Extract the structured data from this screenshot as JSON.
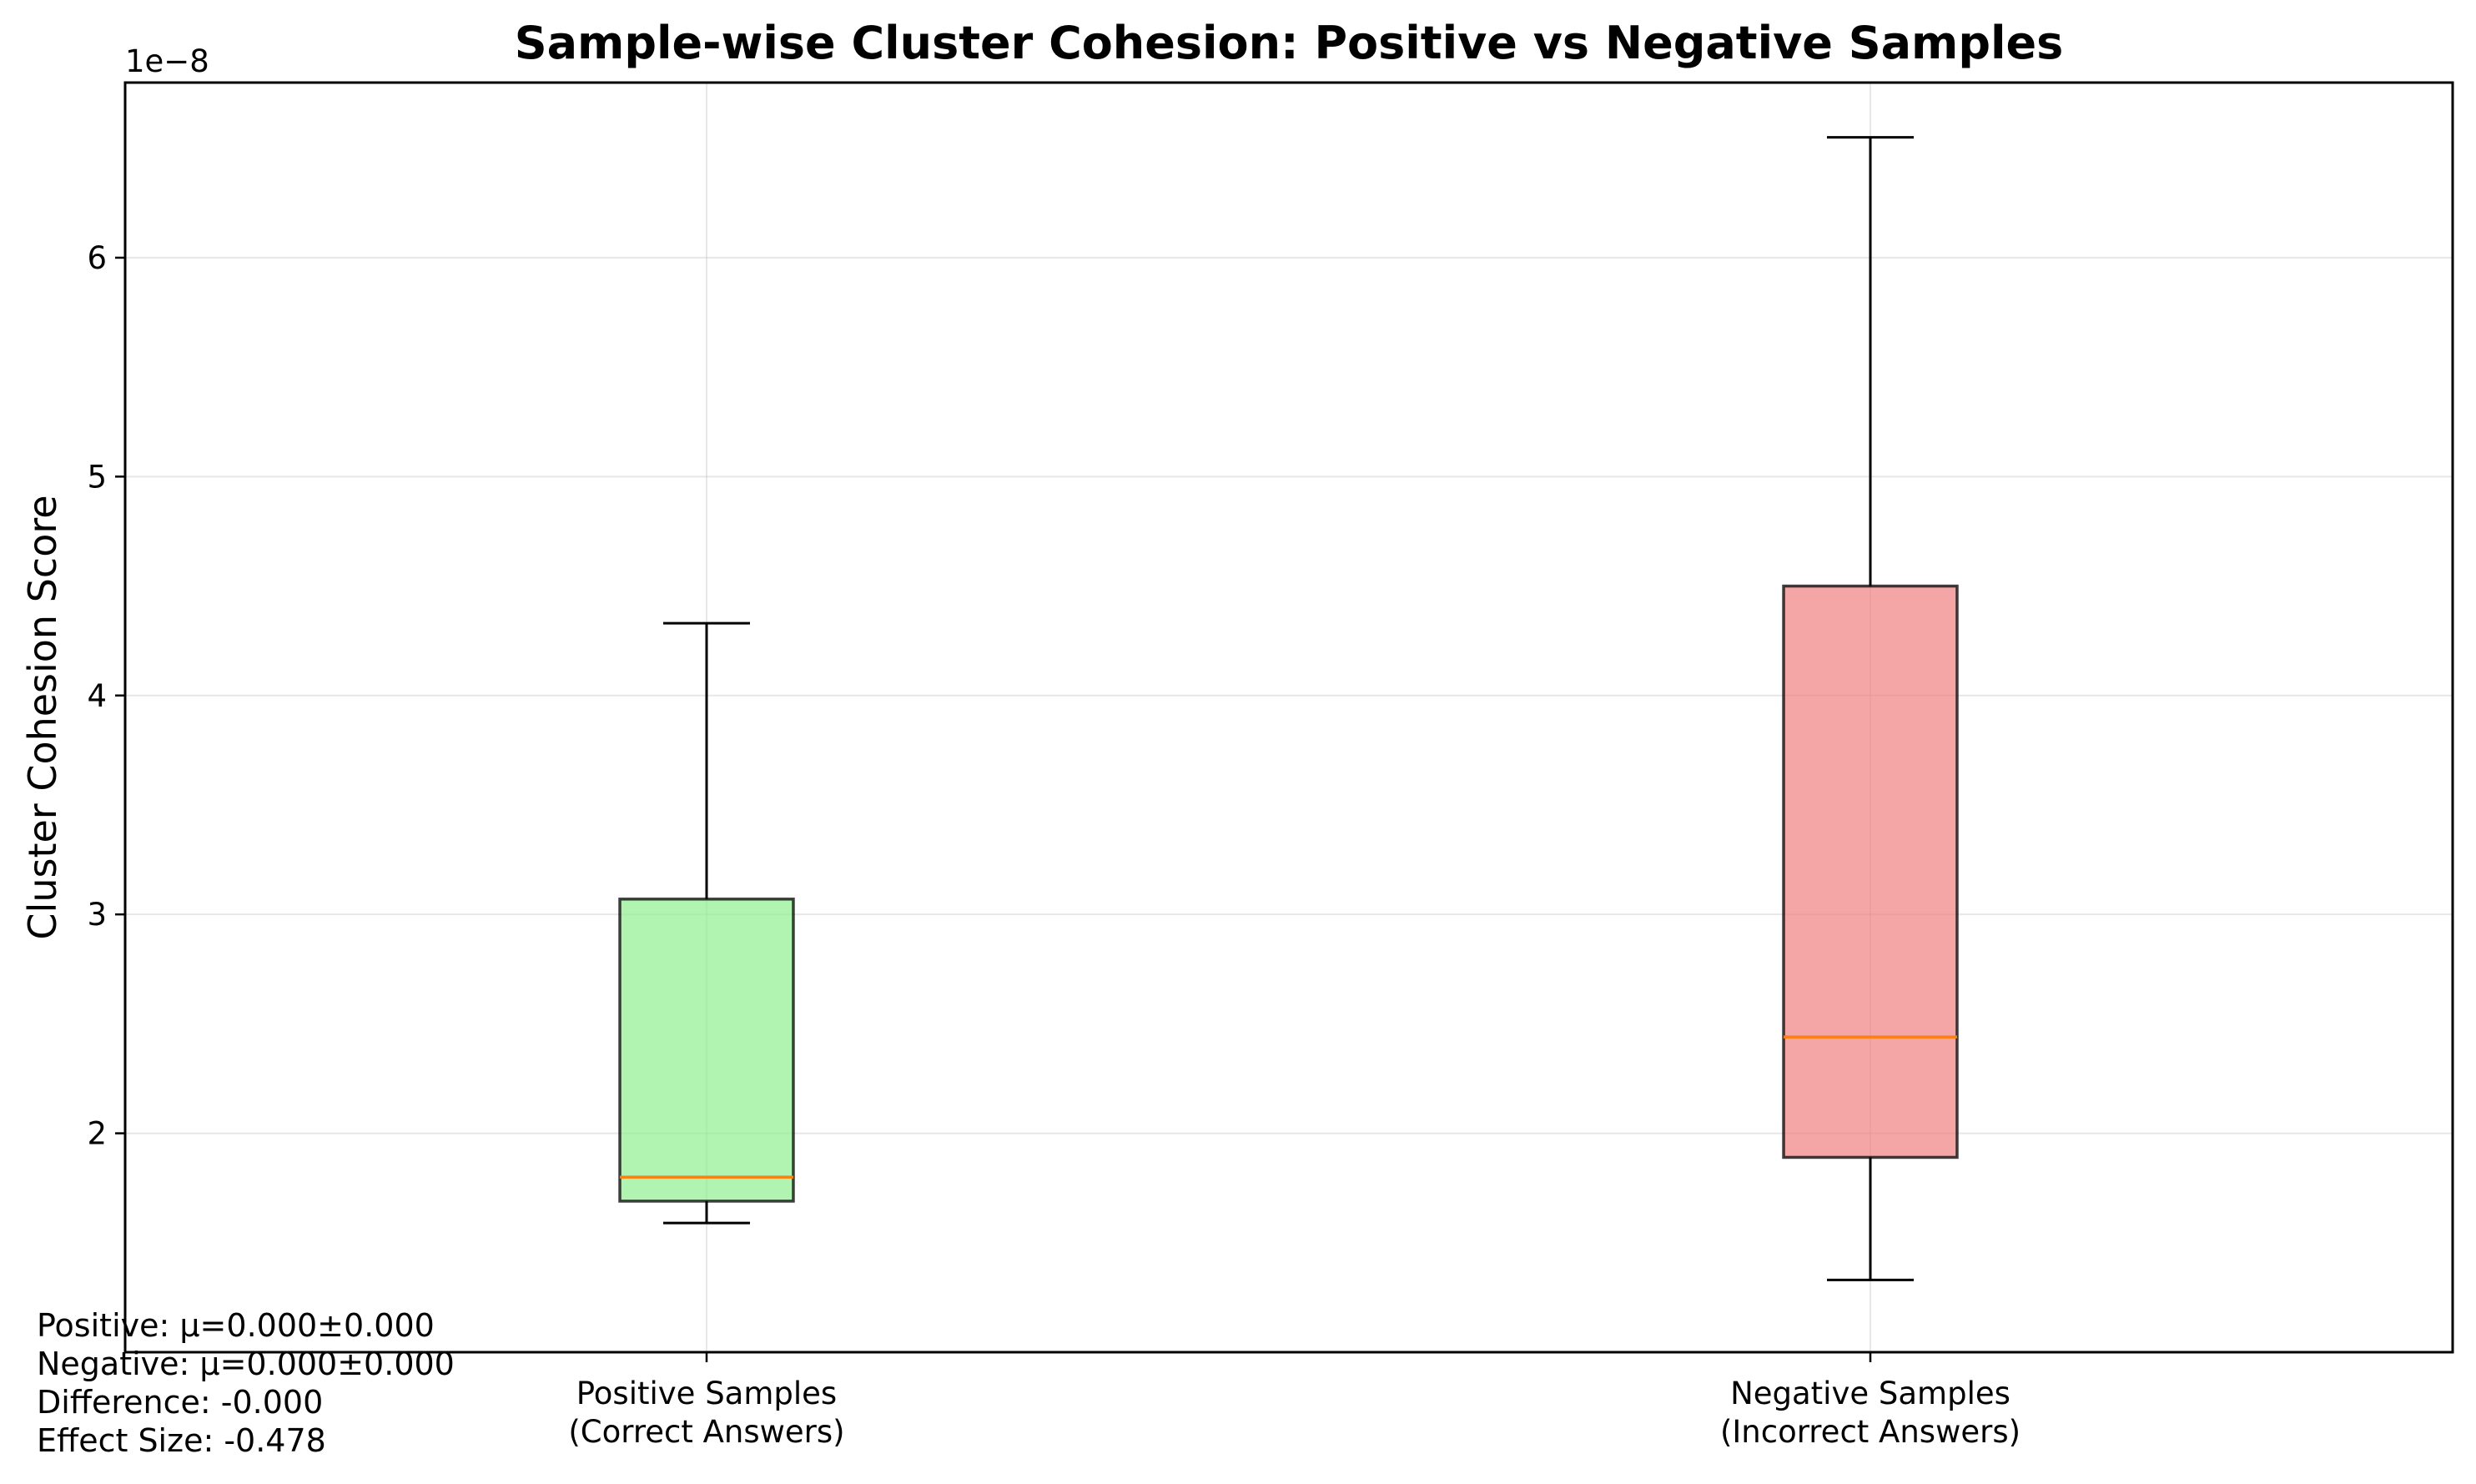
{
  "chart_data": {
    "type": "box",
    "title": "Sample-wise Cluster Cohesion: Positive vs Negative Samples",
    "xlabel": "",
    "ylabel": "Cluster Cohesion Score",
    "y_offset_label": "1e−8",
    "y_scale_exponent": -8,
    "ylim": [
      1.0,
      6.8
    ],
    "yticks": [
      "2",
      "3",
      "4",
      "5",
      "6"
    ],
    "grid": true,
    "categories": [
      {
        "line1": "Positive Samples",
        "line2": "(Correct Answers)"
      },
      {
        "line1": "Negative Samples",
        "line2": "(Incorrect Answers)"
      }
    ],
    "boxes": [
      {
        "whislo": 1.59,
        "q1": 1.69,
        "med": 1.8,
        "q3": 3.07,
        "whishi": 4.33,
        "color": "#90EE90"
      },
      {
        "whislo": 1.33,
        "q1": 1.89,
        "med": 2.44,
        "q3": 4.5,
        "whishi": 6.55,
        "color": "#F08080"
      }
    ],
    "median_color": "#ff7f0e"
  },
  "stats_text": [
    "Positive: μ=0.000±0.000",
    "Negative: μ=0.000±0.000",
    "Difference: -0.000",
    "Effect Size: -0.478"
  ]
}
